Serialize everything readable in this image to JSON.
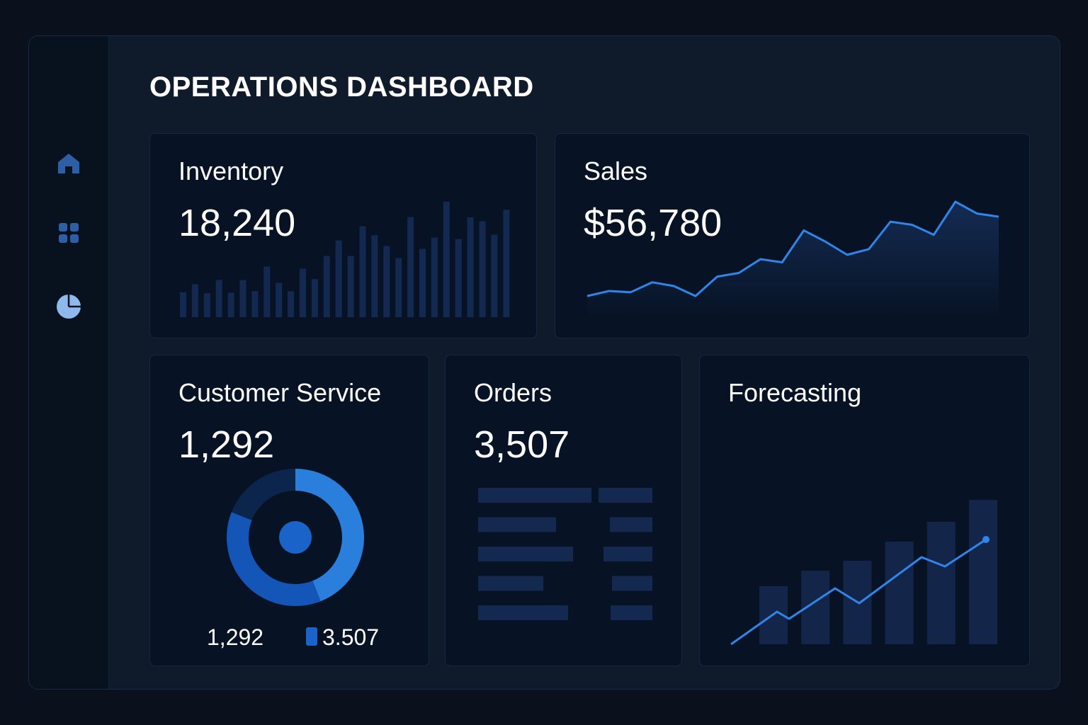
{
  "header": {
    "title": "OPERATIONS DASHBOARD"
  },
  "sidebar": {
    "items": [
      {
        "icon": "home-icon"
      },
      {
        "icon": "grid-icon"
      },
      {
        "icon": "pie-chart-icon"
      }
    ]
  },
  "colors": {
    "accent": "#2f86e8",
    "bar": "#13294f",
    "donut_light": "#2a7fdc",
    "donut_mid": "#1356b8",
    "donut_dark": "#0b254d"
  },
  "inventory": {
    "label": "Inventory",
    "value": "18,240"
  },
  "sales": {
    "label": "Sales",
    "value": "$56,780"
  },
  "customer_service": {
    "label": "Customer Service",
    "value": "1,292",
    "legend": [
      "1,292",
      "3.507"
    ]
  },
  "orders": {
    "label": "Orders",
    "value": "3,507"
  },
  "forecasting": {
    "label": "Forecasting"
  },
  "chart_data": [
    {
      "type": "bar",
      "name": "inventory",
      "values": [
        106,
        140,
        102,
        158,
        104,
        157,
        111,
        215,
        146,
        110,
        206,
        162,
        260,
        326,
        260,
        386,
        348,
        302,
        251,
        425,
        290,
        338,
        490,
        332,
        424,
        407,
        350,
        456
      ]
    },
    {
      "type": "area",
      "name": "sales",
      "values": [
        18,
        26,
        24,
        40,
        34,
        18,
        49,
        55,
        77,
        72,
        123,
        105,
        84,
        93,
        137,
        132,
        116,
        169,
        150,
        145
      ]
    },
    {
      "type": "pie",
      "name": "customer_service",
      "values": [
        44,
        37,
        19
      ]
    },
    {
      "type": "table",
      "name": "orders",
      "rows": [
        [
          160,
          76
        ],
        [
          110,
          60
        ],
        [
          134,
          69
        ],
        [
          92,
          57
        ],
        [
          127,
          59
        ]
      ]
    },
    {
      "type": "bar",
      "name": "forecasting",
      "values": [
        82,
        104,
        118,
        145,
        173,
        204
      ],
      "line": [
        95,
        141,
        131,
        174,
        153,
        218,
        205,
        243
      ]
    }
  ]
}
